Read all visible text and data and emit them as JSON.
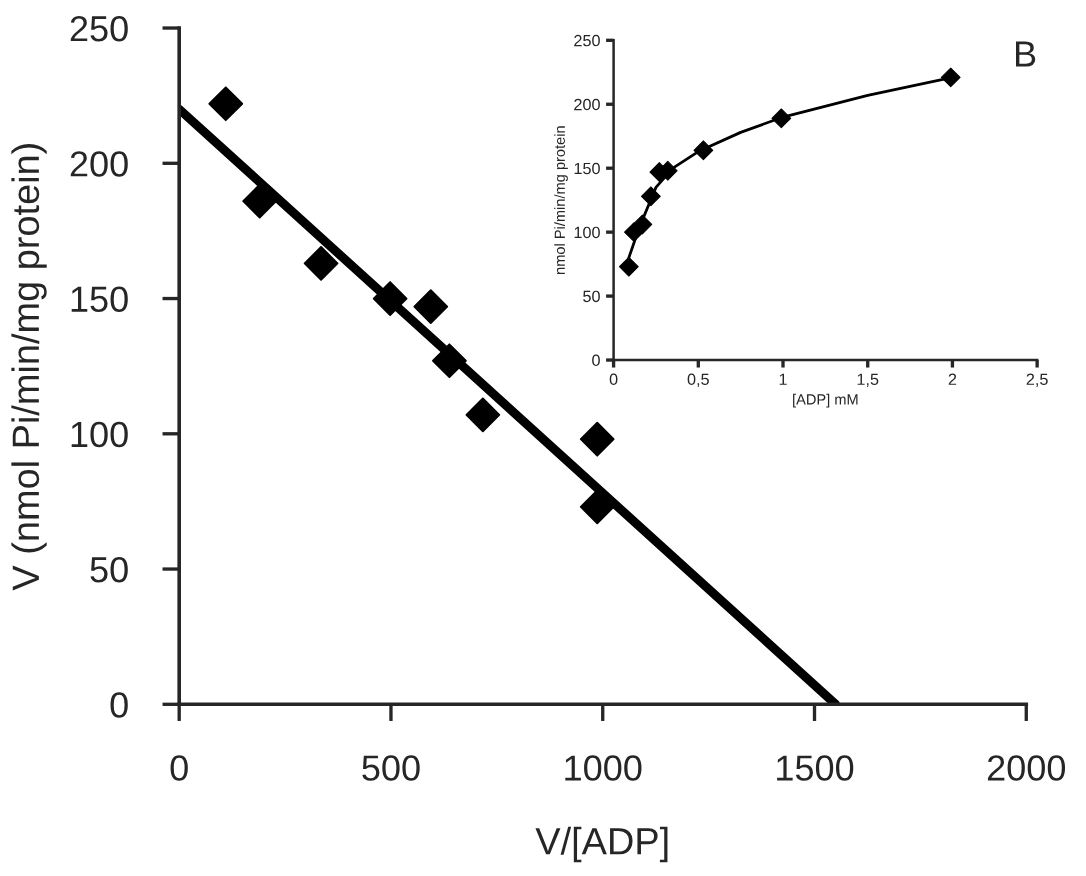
{
  "chart_data": [
    {
      "type": "scatter",
      "xlabel": "V/[ADP]",
      "ylabel": "V (nmol Pi/min/mg protein)",
      "xlim": [
        0,
        2000
      ],
      "ylim": [
        0,
        250
      ],
      "xticks": [
        0,
        500,
        1000,
        1500,
        2000
      ],
      "yticks": [
        0,
        50,
        100,
        150,
        200,
        250
      ],
      "grid": false,
      "legend": false,
      "series": [
        {
          "marker": "diamond",
          "color": "#000000",
          "x": [
            110,
            190,
            335,
            498,
            594,
            638,
            717,
            987,
            987
          ],
          "values": [
            222,
            186,
            163,
            150,
            147,
            127,
            107,
            98,
            73
          ]
        },
        {
          "type": "line",
          "marker": "none",
          "line_style": "solid",
          "color": "#000000",
          "x": [
            0,
            1550
          ],
          "values": [
            220,
            0
          ]
        }
      ]
    },
    {
      "type": "scatter",
      "xlabel": "[ADP] mM",
      "ylabel": "nmol Pi/min/mg protein",
      "xlim": [
        0,
        2.5
      ],
      "ylim": [
        0,
        250
      ],
      "xticks": [
        0,
        {
          "value": 0.5,
          "label": "0,5"
        },
        1,
        {
          "value": 1.5,
          "label": "1,5"
        },
        2,
        {
          "value": 2.5,
          "label": "2,5"
        }
      ],
      "yticks": [
        0,
        50,
        100,
        150,
        200,
        250
      ],
      "grid": false,
      "legend": false,
      "annotations": [
        "B"
      ],
      "series": [
        {
          "marker": "diamond",
          "color": "#000000",
          "x": [
            0.09,
            0.12,
            0.17,
            0.22,
            0.27,
            0.32,
            0.53,
            0.99,
            1.99
          ],
          "values": [
            73,
            100,
            106,
            128,
            147,
            148,
            164,
            189,
            221
          ]
        },
        {
          "type": "line",
          "marker": "none",
          "line_style": "solid",
          "color": "#000000",
          "x": [
            0.09,
            0.15,
            0.25,
            0.35,
            0.5,
            0.75,
            1,
            1.5,
            2
          ],
          "values": [
            80,
            103,
            135,
            150,
            163,
            178,
            190,
            207,
            221
          ]
        }
      ]
    }
  ]
}
